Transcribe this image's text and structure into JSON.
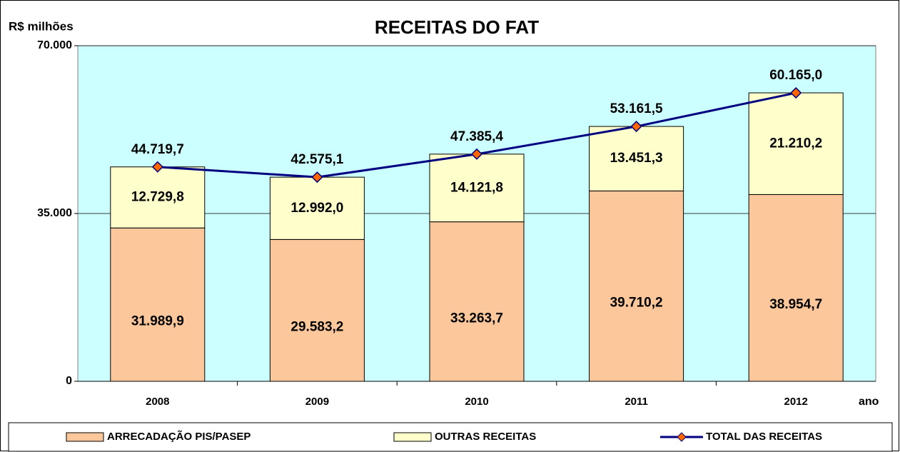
{
  "chart_data": {
    "type": "bar",
    "stacked": true,
    "title": "RECEITAS DO FAT",
    "y_label": "R$ milhões",
    "x_label": "ano",
    "categories": [
      "2008",
      "2009",
      "2010",
      "2011",
      "2012"
    ],
    "series": [
      {
        "name": "ARRECADAÇÃO PIS/PASEP",
        "type": "bar",
        "color": "#fcc89b",
        "values": [
          31989.9,
          29583.2,
          33263.7,
          39710.2,
          38954.7
        ],
        "value_labels": [
          "31.989,9",
          "29.583,2",
          "33.263,7",
          "39.710,2",
          "38.954,7"
        ]
      },
      {
        "name": "OUTRAS RECEITAS",
        "type": "bar",
        "color": "#ffffcc",
        "values": [
          12729.8,
          12992.0,
          14121.8,
          13451.3,
          21210.2
        ],
        "value_labels": [
          "12.729,8",
          "12.992,0",
          "14.121,8",
          "13.451,3",
          "21.210,2"
        ]
      },
      {
        "name": "TOTAL DAS RECEITAS",
        "type": "line",
        "color": "#000080",
        "marker_color": "#ff6600",
        "values": [
          44719.7,
          42575.1,
          47385.4,
          53161.5,
          60165.0
        ],
        "value_labels": [
          "44.719,7",
          "42.575,1",
          "47.385,4",
          "53.161,5",
          "60.165,0"
        ]
      }
    ],
    "ylim": [
      0,
      70000
    ],
    "yticks": [
      0,
      {
        "value": 35000,
        "label": "35.000"
      },
      {
        "value": 70000,
        "label": "70.000"
      }
    ],
    "grid": true,
    "plot_background": "#ccffff",
    "legend": "bottom"
  }
}
